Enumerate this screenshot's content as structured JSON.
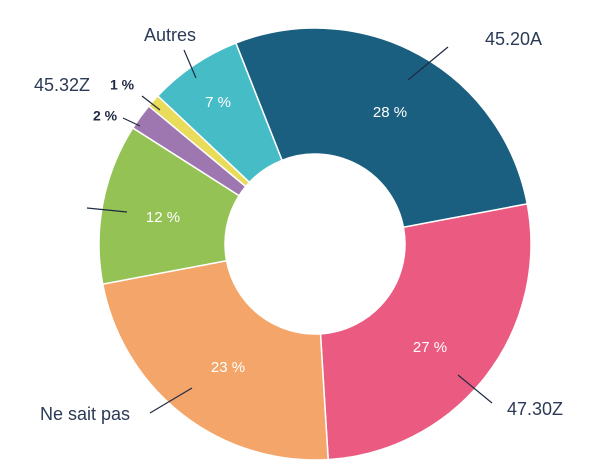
{
  "chart_data": {
    "type": "donut",
    "categories": [
      "45.20A",
      "47.30Z",
      "Ne sait pas",
      null,
      null,
      "45.32Z",
      "Autres"
    ],
    "values": [
      28,
      27,
      23,
      12,
      2,
      1,
      7
    ],
    "value_labels": [
      "28 %",
      "27 %",
      "23 %",
      "12 %",
      "2 %",
      "1 %",
      "7 %"
    ],
    "colors": [
      "#1a5f7f",
      "#eb5a80",
      "#f4a66a",
      "#94c255",
      "#9e76b0",
      "#e8dc5a",
      "#45bcc6"
    ],
    "start_angle": -21.5
  }
}
